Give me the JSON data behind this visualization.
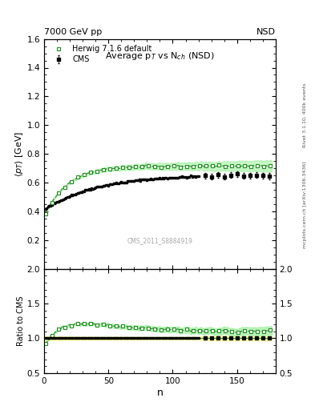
{
  "header_left": "7000 GeV pp",
  "header_right": "NSD",
  "right_label_top": "Rivet 3.1.10, 400k events",
  "right_label_bot": "mcplots.cern.ch [arXiv:1306.3436]",
  "watermark": "CMS_2011_S8884919",
  "title_text": "Average p$_T$ vs N$_{ch}$ (NSD)",
  "xlabel": "n",
  "ylabel_main": "$\\langle p_T \\rangle$ [GeV]",
  "ylabel_ratio": "Ratio to CMS",
  "ylim_main": [
    0.0,
    1.6
  ],
  "ylim_ratio": [
    0.5,
    2.0
  ],
  "yticks_main": [
    0.2,
    0.4,
    0.6,
    0.8,
    1.0,
    1.2,
    1.4,
    1.6
  ],
  "yticks_ratio": [
    0.5,
    1.0,
    1.5,
    2.0
  ],
  "xlim": [
    0,
    180
  ],
  "legend_entries": [
    "CMS",
    "Herwig 7.1.6 default"
  ],
  "cms_color": "#000000",
  "herwig_color": "#228b22",
  "herwig_band_color": "#90ee90",
  "cms_band_color": "#ffff99"
}
